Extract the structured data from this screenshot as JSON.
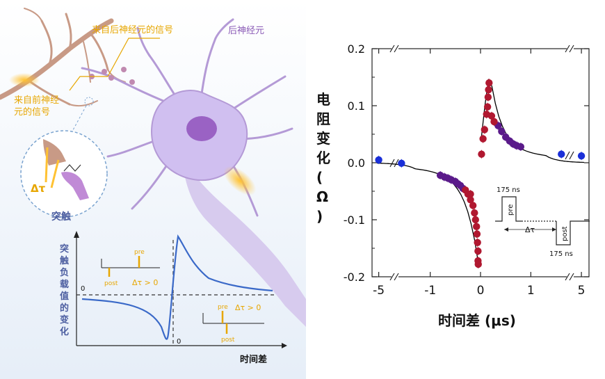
{
  "left_panel": {
    "neuron_labels": {
      "pre_signal": "来自前神经\n元的信号",
      "post_signal": "来自后神经元的信号",
      "post_neuron": "后神经元"
    },
    "synapse_label": "突触",
    "delta_tau": "Δτ",
    "bottom_plot": {
      "ylabel": "突触负载值的变化",
      "xlabel": "时间差",
      "y_zero": "0",
      "x_zero": "0",
      "inset_left": {
        "pre": "pre",
        "post": "post",
        "cond": "Δτ > 0"
      },
      "inset_right": {
        "pre": "pre",
        "post": "post",
        "cond": "Δτ > 0"
      }
    }
  },
  "chart_data": {
    "type": "scatter",
    "xlabel": "时间差 (μs)",
    "ylabel": "电阻变化 (Ω)",
    "ylim": [
      -0.2,
      0.2
    ],
    "yticks": [
      "0.2",
      "0.1",
      "0.0",
      "-0.1",
      "-0.2"
    ],
    "xticks": [
      "-5",
      "-1",
      "0",
      "1",
      "5"
    ],
    "colors": {
      "outer": "#1a2fd8",
      "mid": "#5a1a8a",
      "inner": "#b01830",
      "fit": "#000000"
    },
    "series": [
      {
        "points": [
          {
            "x": -5.3,
            "y": 0.005
          },
          {
            "x": -2.8,
            "y": -0.001
          },
          {
            "x": 3.0,
            "y": 0.015
          },
          {
            "x": 5.2,
            "y": 0.012
          }
        ]
      },
      {
        "points": [
          {
            "x": -0.8,
            "y": -0.022
          },
          {
            "x": -0.72,
            "y": -0.025
          },
          {
            "x": -0.65,
            "y": -0.027
          },
          {
            "x": -0.58,
            "y": -0.03
          },
          {
            "x": -0.5,
            "y": -0.033
          },
          {
            "x": -0.45,
            "y": -0.037
          },
          {
            "x": -0.4,
            "y": -0.04
          },
          {
            "x": -0.35,
            "y": -0.045
          },
          {
            "x": 0.35,
            "y": 0.065
          },
          {
            "x": 0.42,
            "y": 0.055
          },
          {
            "x": 0.5,
            "y": 0.045
          },
          {
            "x": 0.58,
            "y": 0.038
          },
          {
            "x": 0.65,
            "y": 0.033
          },
          {
            "x": 0.72,
            "y": 0.03
          },
          {
            "x": 0.8,
            "y": 0.028
          }
        ]
      },
      {
        "points": [
          {
            "x": -0.3,
            "y": -0.048
          },
          {
            "x": -0.25,
            "y": -0.055
          },
          {
            "x": -0.2,
            "y": -0.065
          },
          {
            "x": -0.15,
            "y": -0.075
          },
          {
            "x": -0.12,
            "y": -0.088
          },
          {
            "x": -0.1,
            "y": -0.1
          },
          {
            "x": -0.08,
            "y": -0.112
          },
          {
            "x": -0.07,
            "y": -0.125
          },
          {
            "x": -0.06,
            "y": -0.14
          },
          {
            "x": -0.05,
            "y": -0.155
          },
          {
            "x": -0.05,
            "y": -0.172
          },
          {
            "x": -0.045,
            "y": -0.178
          },
          {
            "x": -0.2,
            "y": -0.055
          },
          {
            "x": 0.02,
            "y": 0.015
          },
          {
            "x": 0.05,
            "y": 0.042
          },
          {
            "x": 0.08,
            "y": 0.058
          },
          {
            "x": 0.12,
            "y": 0.085
          },
          {
            "x": 0.14,
            "y": 0.098
          },
          {
            "x": 0.15,
            "y": 0.115
          },
          {
            "x": 0.16,
            "y": 0.128
          },
          {
            "x": 0.17,
            "y": 0.14
          },
          {
            "x": 0.22,
            "y": 0.082
          },
          {
            "x": 0.27,
            "y": 0.072
          }
        ]
      }
    ],
    "inset": {
      "pulse_top": "175 ns",
      "pulse_bottom": "175 ns",
      "pre": "pre",
      "post": "post",
      "delta": "Δτ"
    }
  }
}
